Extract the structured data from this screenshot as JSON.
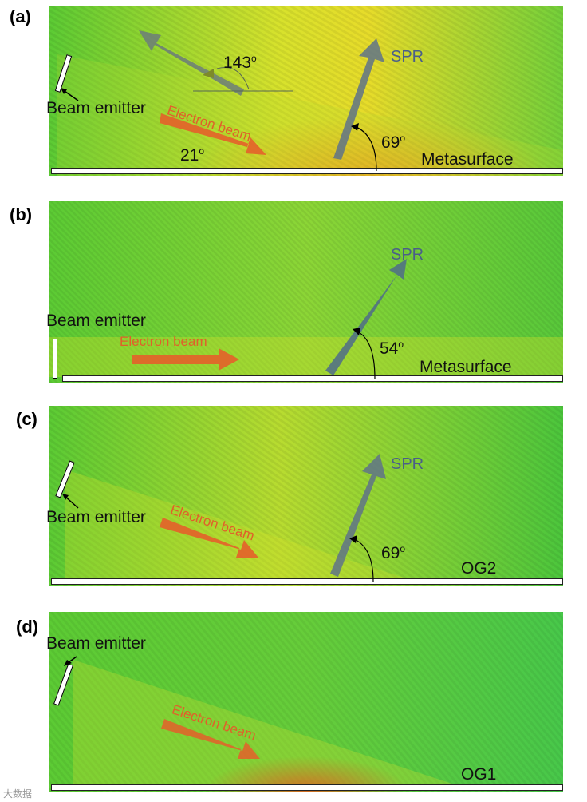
{
  "panels": [
    {
      "label": "(a)",
      "emitter": "Beam emitter",
      "beam": "Electron beam",
      "spr": "SPR",
      "angle_main": "69",
      "angle_beam": "21",
      "angle_back": "143",
      "surface": "Metasurface"
    },
    {
      "label": "(b)",
      "emitter": "Beam emitter",
      "beam": "Electron beam",
      "spr": "SPR",
      "angle_main": "54",
      "surface": "Metasurface"
    },
    {
      "label": "(c)",
      "emitter": "Beam emitter",
      "beam": "Electron beam",
      "spr": "SPR",
      "angle_main": "69",
      "surface": "OG2"
    },
    {
      "label": "(d)",
      "emitter": "Beam emitter",
      "beam": "Electron beam",
      "surface": "OG1"
    }
  ],
  "degree_symbol": "o",
  "watermark": "大数据",
  "colors": {
    "field_green": "#4ec832",
    "field_yellow": "#e6e02a",
    "field_cyan": "#3fd6a8",
    "beam_orange": "#e4602a",
    "spr_gray": "#5f7388"
  }
}
